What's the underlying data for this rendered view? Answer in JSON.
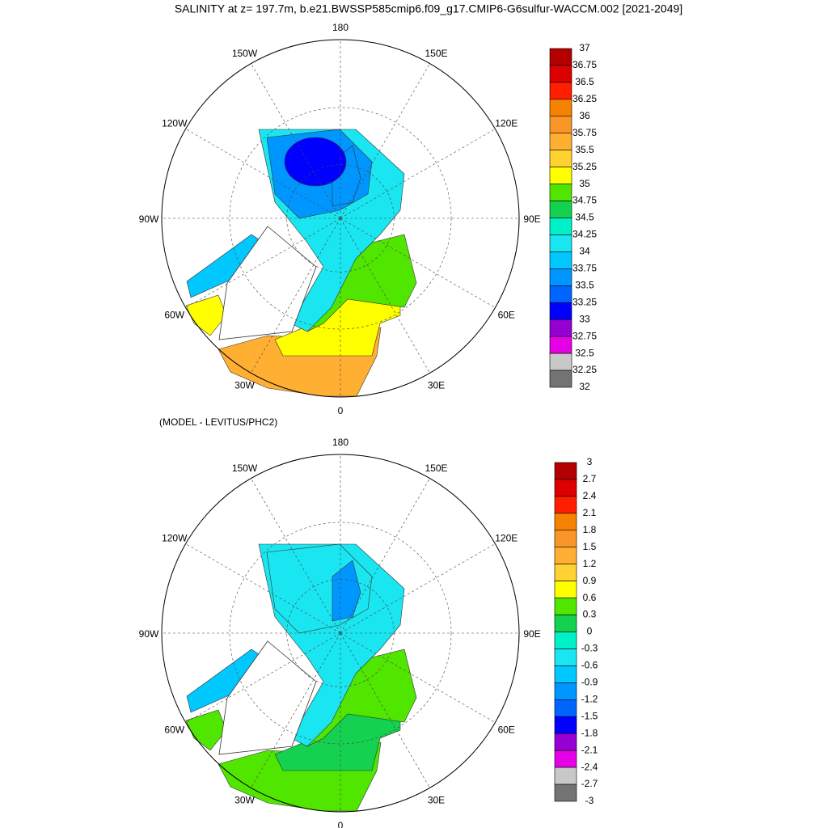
{
  "title": "SALINITY at z= 197.7m, b.e21.BWSSP585cmip6.f09_g17.CMIP6-G6sulfur-WACCM.002 [2021-2049]",
  "colors": [
    "#b40000",
    "#dc0000",
    "#ff1e00",
    "#f58200",
    "#fa9628",
    "#ffaf32",
    "#ffd232",
    "#ffff00",
    "#50e600",
    "#14d250",
    "#00f0c8",
    "#19e6f0",
    "#00c8ff",
    "#0096ff",
    "#0064ff",
    "#0000ff",
    "#9600d2",
    "#e600e6",
    "#c8c8c8",
    "#737373"
  ],
  "maps": [
    {
      "lon_labels": [
        "180",
        "150E",
        "120E",
        "90E",
        "60E",
        "30E",
        "0",
        "30W",
        "60W",
        "90W",
        "120W",
        "150W"
      ],
      "colorbar": [
        "37",
        "36.75",
        "36.5",
        "36.25",
        "36",
        "35.75",
        "35.5",
        "35.25",
        "35",
        "34.75",
        "34.5",
        "34.25",
        "34",
        "33.75",
        "33.5",
        "33.25",
        "33",
        "32.75",
        "32.5",
        "32.25",
        "32"
      ]
    },
    {
      "subtitle": "(MODEL - LEVITUS/PHC2)",
      "lon_labels": [
        "180",
        "150E",
        "120E",
        "90E",
        "60E",
        "30E",
        "0",
        "30W",
        "60W",
        "90W",
        "120W",
        "150W"
      ],
      "colorbar": [
        "3",
        "2.7",
        "2.4",
        "2.1",
        "1.8",
        "1.5",
        "1.2",
        "0.9",
        "0.6",
        "0.3",
        "0",
        "-0.3",
        "-0.6",
        "-0.9",
        "-1.2",
        "-1.5",
        "-1.8",
        "-2.1",
        "-2.4",
        "-2.7",
        "-3"
      ]
    }
  ]
}
